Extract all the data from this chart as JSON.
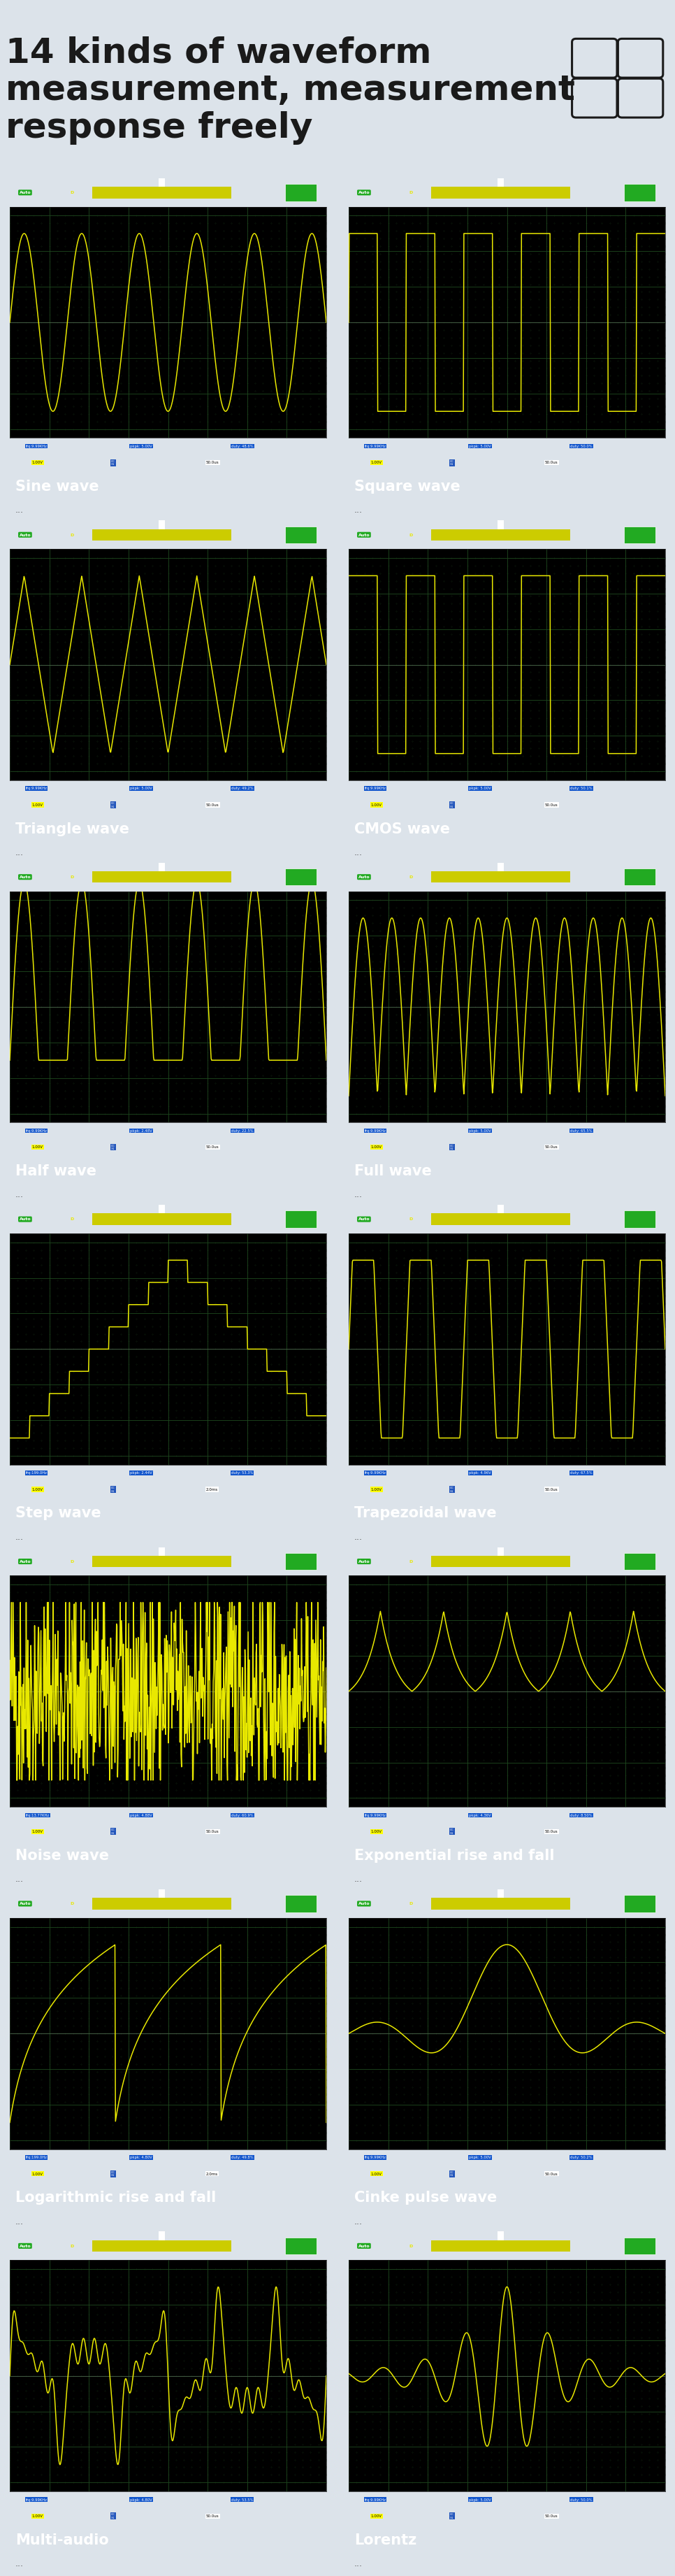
{
  "bg_color": "#dce3ea",
  "title_line1": "14 kinds of waveform",
  "title_line2": "measurement, measurement",
  "title_line3": "response freely",
  "title_fontsize": 36,
  "title_color": "#1a1a1a",
  "screen_bg": "#000000",
  "wave_color": "#e8e800",
  "grid_color": "#1a3a1a",
  "label_bg": "#3a7fd5",
  "label_text_color": "#ffffff",
  "label_fontsize": 15,
  "sub_label_color": "#555555",
  "panels": [
    {
      "title": "Sine wave",
      "type": "sine",
      "freq": "frq:9.99KHz",
      "pkpk": "pkpk: 5.00V",
      "duty": "duty: 48.6%",
      "volt": "1.00V",
      "time": "50.0us"
    },
    {
      "title": "Square wave",
      "type": "square",
      "freq": "frq:9.99KHz",
      "pkpk": "pkpk: 5.00V",
      "duty": "duty: 50.0%",
      "volt": "1.00V",
      "time": "50.0us"
    },
    {
      "title": "Triangle wave",
      "type": "triangle",
      "freq": "frq:9.99KHz",
      "pkpk": "pkpk: 5.00V",
      "duty": "duty: 49.2%",
      "volt": "1.00V",
      "time": "50.0us"
    },
    {
      "title": "CMOS wave",
      "type": "cmos",
      "freq": "frq:9.99KHz",
      "pkpk": "pkpk: 5.00V",
      "duty": "duty: 50.1%",
      "volt": "1.00V",
      "time": "50.0us"
    },
    {
      "title": "Half wave",
      "type": "halfwave",
      "freq": "frq:9.99KHz",
      "pkpk": "pkpk: 2.48V",
      "duty": "duty: 22.5%",
      "volt": "1.00V",
      "time": "50.0us"
    },
    {
      "title": "Full wave",
      "type": "fullwave",
      "freq": "frq:9.99KHz",
      "pkpk": "pkpk: 5.00V",
      "duty": "duty: 65.5%",
      "volt": "1.00V",
      "time": "50.0us"
    },
    {
      "title": "Step wave",
      "type": "step",
      "freq": "frq:199.0Hz",
      "pkpk": "pkpk: 2.44V",
      "duty": "duty: 53.3%",
      "volt": "1.00V",
      "time": "2.0ms"
    },
    {
      "title": "Trapezoidal wave",
      "type": "trapezoid",
      "freq": "frq:9.99KHz",
      "pkpk": "pkpk: 4.96V",
      "duty": "duty: 67.5%",
      "volt": "1.00V",
      "time": "50.0us"
    },
    {
      "title": "Noise wave",
      "type": "noise",
      "freq": "frq:13.77KHz",
      "pkpk": "pkpk: 4.88V",
      "duty": "duty: 60.9%",
      "volt": "1.00V",
      "time": "50.0us"
    },
    {
      "title": "Exponential rise and fall",
      "type": "exprise",
      "freq": "frq:9.99KHz",
      "pkpk": "pkpk: 4.36V",
      "duty": "duty: 8.50%",
      "volt": "1.00V",
      "time": "50.0us"
    },
    {
      "title": "Logarithmic rise and fall",
      "type": "logrise",
      "freq": "frq:199.0Hz",
      "pkpk": "pkpk: 4.80V",
      "duty": "duty: 49.8%",
      "volt": "1.00V",
      "time": "2.0ms"
    },
    {
      "title": "Cinke pulse wave",
      "type": "sinc",
      "freq": "frq:9.99KHz",
      "pkpk": "pkpk: 5.00V",
      "duty": "duty: 50.2%",
      "volt": "1.00V",
      "time": "50.0us"
    },
    {
      "title": "Multi-audio",
      "type": "multitone",
      "freq": "frq:9.99KHz",
      "pkpk": "pkpk: 4.80V",
      "duty": "duty: 53.5%",
      "volt": "1.00V",
      "time": "50.0us"
    },
    {
      "title": "Lorentz",
      "type": "lorentz",
      "freq": "frq:9.99KHz",
      "pkpk": "pkpk: 5.00V",
      "duty": "duty: 50.0%",
      "volt": "1.00V",
      "time": "50.0us"
    }
  ]
}
